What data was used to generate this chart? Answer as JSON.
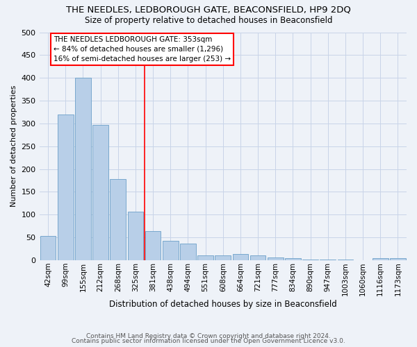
{
  "title": "THE NEEDLES, LEDBOROUGH GATE, BEACONSFIELD, HP9 2DQ",
  "subtitle": "Size of property relative to detached houses in Beaconsfield",
  "xlabel": "Distribution of detached houses by size in Beaconsfield",
  "ylabel": "Number of detached properties",
  "footer1": "Contains HM Land Registry data © Crown copyright and database right 2024.",
  "footer2": "Contains public sector information licensed under the Open Government Licence v3.0.",
  "categories": [
    "42sqm",
    "99sqm",
    "155sqm",
    "212sqm",
    "268sqm",
    "325sqm",
    "381sqm",
    "438sqm",
    "494sqm",
    "551sqm",
    "608sqm",
    "664sqm",
    "721sqm",
    "777sqm",
    "834sqm",
    "890sqm",
    "947sqm",
    "1003sqm",
    "1060sqm",
    "1116sqm",
    "1173sqm"
  ],
  "values": [
    53,
    320,
    400,
    297,
    178,
    107,
    64,
    42,
    37,
    11,
    10,
    13,
    10,
    6,
    4,
    2,
    1,
    1,
    0,
    5,
    4
  ],
  "bar_color": "#b8cfe8",
  "bar_edge_color": "#6a9fc8",
  "vline_x": 5.5,
  "vline_color": "red",
  "annotation_box_text": "THE NEEDLES LEDBOROUGH GATE: 353sqm\n← 84% of detached houses are smaller (1,296)\n16% of semi-detached houses are larger (253) →",
  "bg_color": "#eef2f8",
  "grid_color": "#c8d4e8",
  "ylim": [
    0,
    500
  ],
  "yticks": [
    0,
    50,
    100,
    150,
    200,
    250,
    300,
    350,
    400,
    450,
    500
  ]
}
